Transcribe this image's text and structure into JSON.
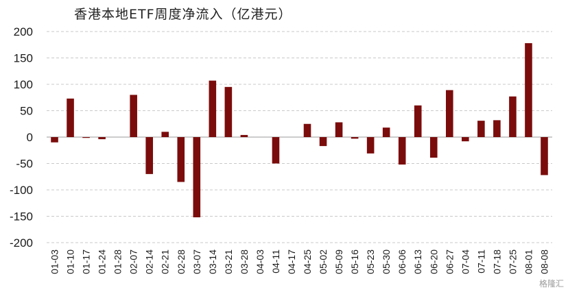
{
  "chart_data": {
    "type": "bar",
    "title": "香港本地ETF周度净流入（亿港元）",
    "xlabel": "",
    "ylabel": "",
    "ylim": [
      -200,
      200
    ],
    "yticks": [
      200,
      150,
      100,
      50,
      0,
      -50,
      -100,
      -150,
      -200
    ],
    "grid": "horizontal-dashed",
    "legend": "none",
    "bar_color": "#7b0c0c",
    "categories": [
      "01-03",
      "01-10",
      "01-17",
      "01-24",
      "01-28",
      "02-07",
      "02-14",
      "02-21",
      "02-28",
      "03-07",
      "03-14",
      "03-21",
      "03-28",
      "04-03",
      "04-11",
      "04-17",
      "04-25",
      "05-02",
      "05-09",
      "05-16",
      "05-23",
      "05-30",
      "06-06",
      "06-13",
      "06-20",
      "06-27",
      "07-04",
      "07-11",
      "07-18",
      "07-25",
      "08-01",
      "08-08"
    ],
    "values": [
      -10,
      73,
      -1,
      -4,
      0,
      80,
      -70,
      10,
      -85,
      -152,
      107,
      95,
      4,
      0,
      -50,
      0,
      25,
      -17,
      28,
      -3,
      -31,
      18,
      -52,
      60,
      -39,
      89,
      -8,
      31,
      32,
      77,
      178,
      -72
    ]
  },
  "watermark": "格隆汇"
}
